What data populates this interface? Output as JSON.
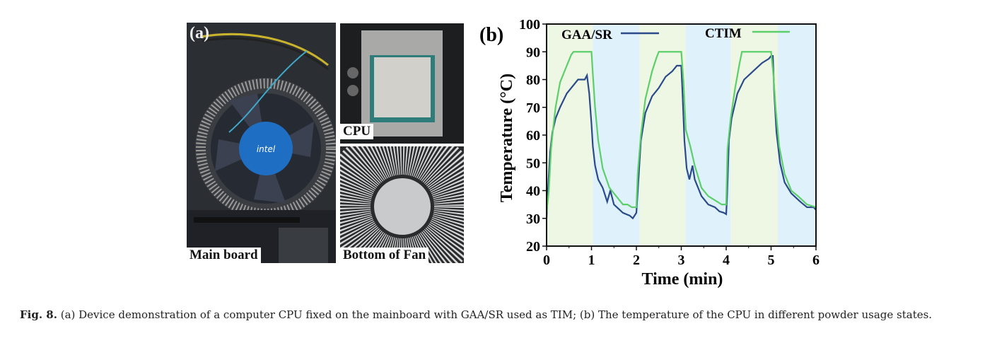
{
  "panel_a": {
    "label": "(a)",
    "photos": [
      {
        "caption": "Main board"
      },
      {
        "caption": "CPU"
      },
      {
        "caption": "Bottom of Fan"
      }
    ],
    "fan_logo": "intel"
  },
  "chart_data": {
    "type": "line",
    "panel_label": "(b)",
    "title": "",
    "xlabel": "Time (min)",
    "ylabel": "Temperature (°C)",
    "xlim": [
      0,
      6
    ],
    "ylim": [
      20,
      100
    ],
    "xticks": [
      "0",
      "1",
      "2",
      "3",
      "4",
      "5",
      "6"
    ],
    "yticks": [
      "20",
      "30",
      "40",
      "50",
      "60",
      "70",
      "80",
      "90",
      "100"
    ],
    "legend_placement": "top",
    "bands": [
      {
        "start": 0,
        "end": 1.03,
        "color": "#eef6e4"
      },
      {
        "start": 1.03,
        "end": 2.07,
        "color": "#dff1fb"
      },
      {
        "start": 2.07,
        "end": 3.1,
        "color": "#eef6e4"
      },
      {
        "start": 3.1,
        "end": 4.1,
        "color": "#dff1fb"
      },
      {
        "start": 4.1,
        "end": 5.15,
        "color": "#eef6e4"
      },
      {
        "start": 5.15,
        "end": 6,
        "color": "#dff1fb"
      }
    ],
    "series": [
      {
        "name": "GAA/SR",
        "color": "#2b4a8a",
        "points": [
          [
            0,
            30
          ],
          [
            0.03,
            40
          ],
          [
            0.08,
            54
          ],
          [
            0.13,
            61
          ],
          [
            0.2,
            66
          ],
          [
            0.3,
            70
          ],
          [
            0.45,
            75
          ],
          [
            0.55,
            77
          ],
          [
            0.7,
            80
          ],
          [
            0.85,
            80
          ],
          [
            0.9,
            81.5
          ],
          [
            0.95,
            75
          ],
          [
            1.0,
            64
          ],
          [
            1.03,
            56
          ],
          [
            1.08,
            49
          ],
          [
            1.15,
            44
          ],
          [
            1.25,
            41
          ],
          [
            1.35,
            36
          ],
          [
            1.42,
            40
          ],
          [
            1.5,
            35
          ],
          [
            1.7,
            32
          ],
          [
            1.85,
            31
          ],
          [
            1.92,
            30
          ],
          [
            2.0,
            32
          ],
          [
            2.05,
            45
          ],
          [
            2.1,
            58
          ],
          [
            2.2,
            68
          ],
          [
            2.35,
            74
          ],
          [
            2.5,
            77
          ],
          [
            2.65,
            81
          ],
          [
            2.8,
            83
          ],
          [
            2.9,
            85
          ],
          [
            3.0,
            85
          ],
          [
            3.03,
            74
          ],
          [
            3.07,
            58
          ],
          [
            3.12,
            48
          ],
          [
            3.18,
            44
          ],
          [
            3.25,
            49
          ],
          [
            3.3,
            44
          ],
          [
            3.45,
            38
          ],
          [
            3.6,
            35
          ],
          [
            3.75,
            34
          ],
          [
            3.85,
            32.5
          ],
          [
            3.95,
            32
          ],
          [
            4.0,
            31.5
          ],
          [
            4.02,
            38
          ],
          [
            4.06,
            58
          ],
          [
            4.12,
            66
          ],
          [
            4.25,
            75
          ],
          [
            4.4,
            80
          ],
          [
            4.6,
            83
          ],
          [
            4.8,
            86
          ],
          [
            4.95,
            87.5
          ],
          [
            5.0,
            88.5
          ],
          [
            5.04,
            88.5
          ],
          [
            5.07,
            75
          ],
          [
            5.12,
            61
          ],
          [
            5.2,
            50
          ],
          [
            5.3,
            43
          ],
          [
            5.45,
            39
          ],
          [
            5.65,
            36
          ],
          [
            5.8,
            34
          ],
          [
            5.95,
            34
          ],
          [
            6,
            33
          ]
        ]
      },
      {
        "name": "CTIM",
        "color": "#5ccf6a",
        "points": [
          [
            0,
            32
          ],
          [
            0.05,
            40
          ],
          [
            0.1,
            55
          ],
          [
            0.15,
            63
          ],
          [
            0.2,
            70
          ],
          [
            0.3,
            79
          ],
          [
            0.45,
            85
          ],
          [
            0.55,
            89
          ],
          [
            0.6,
            90
          ],
          [
            1.0,
            90
          ],
          [
            1.03,
            82
          ],
          [
            1.08,
            70
          ],
          [
            1.15,
            58
          ],
          [
            1.25,
            48
          ],
          [
            1.4,
            41
          ],
          [
            1.55,
            38
          ],
          [
            1.7,
            35
          ],
          [
            1.8,
            35
          ],
          [
            1.9,
            34
          ],
          [
            2.0,
            34
          ],
          [
            2.03,
            46
          ],
          [
            2.1,
            60
          ],
          [
            2.2,
            73
          ],
          [
            2.35,
            83
          ],
          [
            2.45,
            88
          ],
          [
            2.5,
            90
          ],
          [
            3.0,
            90
          ],
          [
            3.05,
            79
          ],
          [
            3.1,
            62
          ],
          [
            3.2,
            56
          ],
          [
            3.3,
            49
          ],
          [
            3.45,
            41
          ],
          [
            3.6,
            38
          ],
          [
            3.75,
            36.5
          ],
          [
            3.9,
            35
          ],
          [
            4.0,
            35
          ],
          [
            4.03,
            55
          ],
          [
            4.1,
            66
          ],
          [
            4.2,
            77
          ],
          [
            4.3,
            86
          ],
          [
            4.35,
            90
          ],
          [
            5.0,
            90
          ],
          [
            5.05,
            82
          ],
          [
            5.1,
            70
          ],
          [
            5.18,
            56
          ],
          [
            5.3,
            46
          ],
          [
            5.45,
            40
          ],
          [
            5.6,
            38
          ],
          [
            5.8,
            35
          ],
          [
            6,
            34
          ]
        ]
      }
    ]
  },
  "caption": {
    "label": "Fig. 8.",
    "text": " (a) Device demonstration of a computer CPU fixed on the mainboard with GAA/SR used as TIM; (b) The temperature of the CPU in different powder usage states."
  }
}
